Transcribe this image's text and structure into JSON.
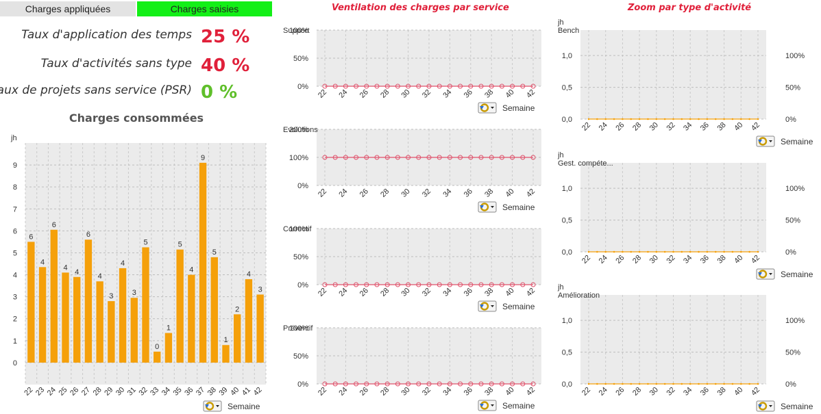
{
  "tabs": {
    "applied": "Charges appliquées",
    "entered": "Charges saisies"
  },
  "kpis": [
    {
      "label": "Taux d'application des temps",
      "value": "25 %",
      "color": "#e0203a"
    },
    {
      "label": "Taux d'activités sans type",
      "value": "40 %",
      "color": "#e0203a"
    },
    {
      "label": "Taux de projets sans service (PSR)",
      "value": "0 %",
      "color": "#5fbf2a"
    }
  ],
  "titles": {
    "bar": "Charges consommées",
    "service": "Ventilation des charges par service",
    "activity": "Zoom par type d'activité"
  },
  "colors": {
    "bar": "#f5a00a",
    "line": "#e0506a",
    "activity_line": "#f5a00a",
    "plot_bg": "#ebebeb"
  },
  "icons": {
    "week_selector": "cycle-dropdown-icon"
  },
  "chart_data": [
    {
      "type": "bar",
      "title": "Charges consommées",
      "ylabel": "jh",
      "xlabel": "Semaine",
      "categories": [
        "22",
        "23",
        "24",
        "25",
        "26",
        "27",
        "28",
        "29",
        "30",
        "31",
        "32",
        "33",
        "34",
        "35",
        "36",
        "37",
        "38",
        "39",
        "40",
        "41",
        "42"
      ],
      "values": [
        5.5,
        4.35,
        6.05,
        4.1,
        3.9,
        5.6,
        3.7,
        2.8,
        4.3,
        2.95,
        5.25,
        0.5,
        1.35,
        5.15,
        4.0,
        9.1,
        4.8,
        0.8,
        2.2,
        3.8,
        3.1
      ],
      "data_labels": [
        "6",
        "4",
        "6",
        "4",
        "4",
        "6",
        "4",
        "3",
        "4",
        "3",
        "5",
        "0",
        "1",
        "5",
        "4",
        "9",
        "5",
        "1",
        "2",
        "4",
        "3"
      ],
      "yticks": [
        "0",
        "1",
        "2",
        "3",
        "4",
        "5",
        "6",
        "7",
        "8",
        "9"
      ],
      "ylim": [
        -1,
        10
      ],
      "grid": true
    },
    {
      "type": "line",
      "title": "Support",
      "xlabel": "Semaine",
      "x": [
        22,
        23,
        24,
        25,
        26,
        27,
        28,
        29,
        30,
        31,
        32,
        33,
        34,
        35,
        36,
        37,
        38,
        39,
        40,
        41,
        42
      ],
      "values": [
        0,
        0,
        0,
        0,
        0,
        0,
        0,
        0,
        0,
        0,
        0,
        0,
        0,
        0,
        0,
        0,
        0,
        0,
        0,
        0,
        0
      ],
      "xticks": [
        "22",
        "24",
        "26",
        "28",
        "30",
        "32",
        "34",
        "36",
        "38",
        "40",
        "42"
      ],
      "yticks": [
        "0%",
        "50%",
        "100%"
      ],
      "ylim": [
        0,
        100
      ]
    },
    {
      "type": "line",
      "title": "Evolutions",
      "xlabel": "Semaine",
      "x": [
        22,
        23,
        24,
        25,
        26,
        27,
        28,
        29,
        30,
        31,
        32,
        33,
        34,
        35,
        36,
        37,
        38,
        39,
        40,
        41,
        42
      ],
      "values": [
        100,
        100,
        100,
        100,
        100,
        100,
        100,
        100,
        100,
        100,
        100,
        100,
        100,
        100,
        100,
        100,
        100,
        100,
        100,
        100,
        100
      ],
      "xticks": [
        "22",
        "24",
        "26",
        "28",
        "30",
        "32",
        "34",
        "36",
        "38",
        "40",
        "42"
      ],
      "yticks": [
        "0%",
        "100%",
        "200%"
      ],
      "ylim": [
        0,
        200
      ]
    },
    {
      "type": "line",
      "title": "Correctif",
      "xlabel": "Semaine",
      "x": [
        22,
        23,
        24,
        25,
        26,
        27,
        28,
        29,
        30,
        31,
        32,
        33,
        34,
        35,
        36,
        37,
        38,
        39,
        40,
        41,
        42
      ],
      "values": [
        0,
        0,
        0,
        0,
        0,
        0,
        0,
        0,
        0,
        0,
        0,
        0,
        0,
        0,
        0,
        0,
        0,
        0,
        0,
        0,
        0
      ],
      "xticks": [
        "22",
        "24",
        "26",
        "28",
        "30",
        "32",
        "34",
        "36",
        "38",
        "40",
        "42"
      ],
      "yticks": [
        "0%",
        "50%",
        "100%"
      ],
      "ylim": [
        0,
        100
      ]
    },
    {
      "type": "line",
      "title": "Préventif",
      "xlabel": "Semaine",
      "x": [
        22,
        23,
        24,
        25,
        26,
        27,
        28,
        29,
        30,
        31,
        32,
        33,
        34,
        35,
        36,
        37,
        38,
        39,
        40,
        41,
        42
      ],
      "values": [
        0,
        0,
        0,
        0,
        0,
        0,
        0,
        0,
        0,
        0,
        0,
        0,
        0,
        0,
        0,
        0,
        0,
        0,
        0,
        0,
        0
      ],
      "xticks": [
        "22",
        "24",
        "26",
        "28",
        "30",
        "32",
        "34",
        "36",
        "38",
        "40",
        "42"
      ],
      "yticks": [
        "0%",
        "50%",
        "100%"
      ],
      "ylim": [
        0,
        100
      ]
    },
    {
      "type": "line",
      "title": "Bench",
      "ylabel": "jh",
      "xlabel": "Semaine",
      "x": [
        22,
        23,
        24,
        25,
        26,
        27,
        28,
        29,
        30,
        31,
        32,
        33,
        34,
        35,
        36,
        37,
        38,
        39,
        40,
        41,
        42
      ],
      "values": [
        0,
        0,
        0,
        0,
        0,
        0,
        0,
        0,
        0,
        0,
        0,
        0,
        0,
        0,
        0,
        0,
        0,
        0,
        0,
        0,
        0
      ],
      "xticks": [
        "22",
        "24",
        "26",
        "28",
        "30",
        "32",
        "34",
        "36",
        "38",
        "40",
        "42"
      ],
      "yticks": [
        "0,0",
        "0,5",
        "1,0"
      ],
      "ylim": [
        0,
        1.4
      ],
      "y2ticks": [
        "0%",
        "50%",
        "100%"
      ],
      "y2lim": [
        0,
        140
      ]
    },
    {
      "type": "line",
      "title": "Gest. compéte...",
      "ylabel": "jh",
      "xlabel": "Semaine",
      "x": [
        22,
        23,
        24,
        25,
        26,
        27,
        28,
        29,
        30,
        31,
        32,
        33,
        34,
        35,
        36,
        37,
        38,
        39,
        40,
        41,
        42
      ],
      "values": [
        0,
        0,
        0,
        0,
        0,
        0,
        0,
        0,
        0,
        0,
        0,
        0,
        0,
        0,
        0,
        0,
        0,
        0,
        0,
        0,
        0
      ],
      "xticks": [
        "22",
        "24",
        "26",
        "28",
        "30",
        "32",
        "34",
        "36",
        "38",
        "40",
        "42"
      ],
      "yticks": [
        "0,0",
        "0,5",
        "1,0"
      ],
      "ylim": [
        0,
        1.4
      ],
      "y2ticks": [
        "0%",
        "50%",
        "100%"
      ],
      "y2lim": [
        0,
        140
      ]
    },
    {
      "type": "line",
      "title": "Amélioration",
      "ylabel": "jh",
      "xlabel": "Semaine",
      "x": [
        22,
        23,
        24,
        25,
        26,
        27,
        28,
        29,
        30,
        31,
        32,
        33,
        34,
        35,
        36,
        37,
        38,
        39,
        40,
        41,
        42
      ],
      "values": [
        0,
        0,
        0,
        0,
        0,
        0,
        0,
        0,
        0,
        0,
        0,
        0,
        0,
        0,
        0,
        0,
        0,
        0,
        0,
        0,
        0
      ],
      "xticks": [
        "22",
        "24",
        "26",
        "28",
        "30",
        "32",
        "34",
        "36",
        "38",
        "40",
        "42"
      ],
      "yticks": [
        "0,0",
        "0,5",
        "1,0"
      ],
      "ylim": [
        0,
        1.4
      ],
      "y2ticks": [
        "0%",
        "50%",
        "100%"
      ],
      "y2lim": [
        0,
        140
      ]
    }
  ]
}
